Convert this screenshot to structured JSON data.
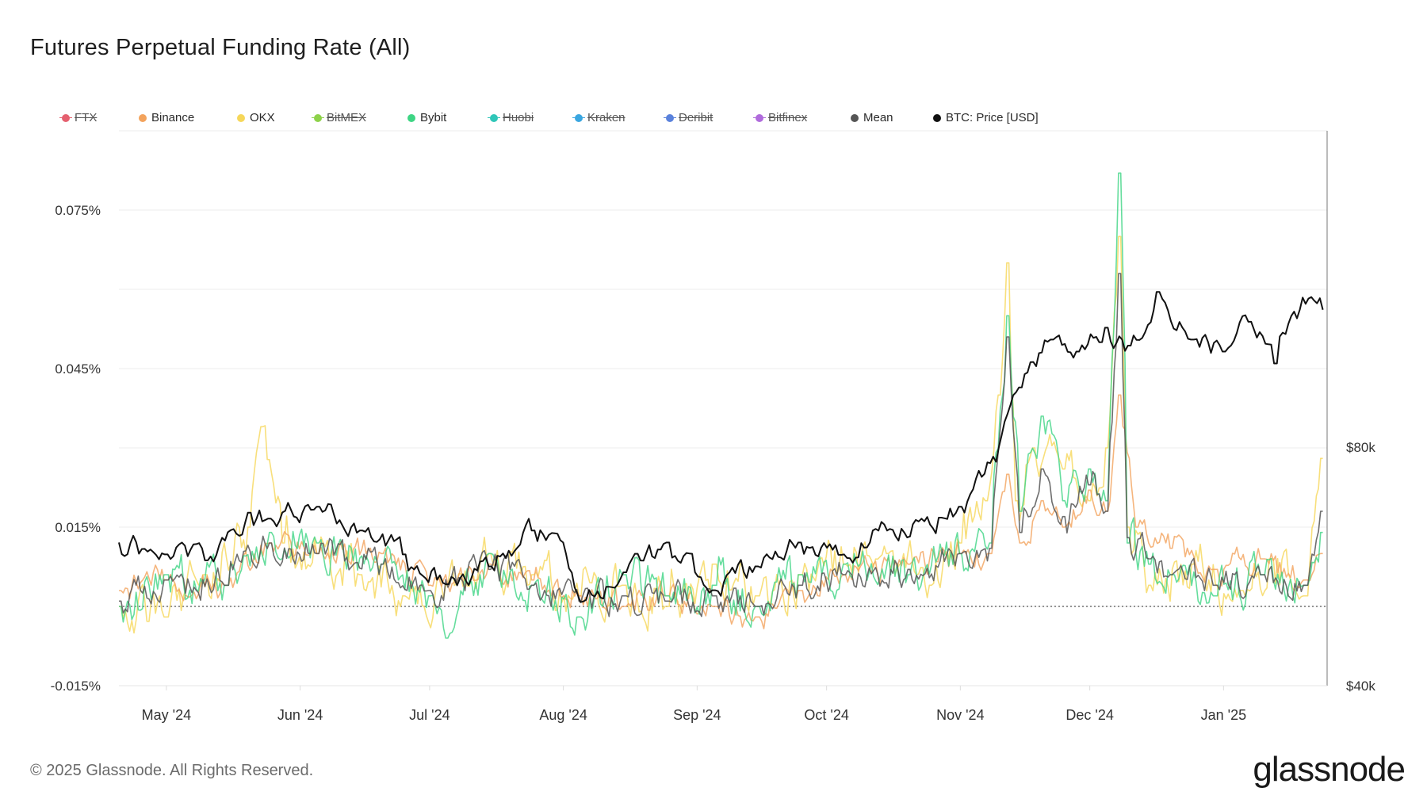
{
  "title": "Futures Perpetual Funding Rate (All)",
  "footer": "© 2025 Glassnode. All Rights Reserved.",
  "brand": "glassnode",
  "chart_data": {
    "type": "line",
    "x_ticks": [
      "May '24",
      "Jun '24",
      "Jul '24",
      "Aug '24",
      "Sep '24",
      "Oct '24",
      "Nov '24",
      "Dec '24",
      "Jan '25"
    ],
    "x_range": [
      "2024-04-20",
      "2025-01-25"
    ],
    "y_left": {
      "ticks": [
        -0.015,
        0.015,
        0.045,
        0.075
      ],
      "tick_labels": [
        "-0.015%",
        "0.015%",
        "0.045%",
        "0.075%"
      ],
      "range": [
        -0.015,
        0.09
      ]
    },
    "y_right": {
      "ticks": [
        40000,
        80000
      ],
      "tick_labels": [
        "$40k",
        "$80k"
      ],
      "range": [
        40000,
        133000
      ]
    },
    "grid": true,
    "legend_position": "top",
    "baseline": 0,
    "series": [
      {
        "name": "FTX",
        "color": "#e5606f",
        "enabled": false
      },
      {
        "name": "Binance",
        "color": "#f3a35c",
        "enabled": true,
        "axis": "left",
        "x": [
          "2024-04-20",
          "2024-05-01",
          "2024-05-15",
          "2024-05-25",
          "2024-06-05",
          "2024-06-20",
          "2024-07-01",
          "2024-07-15",
          "2024-07-25",
          "2024-08-05",
          "2024-08-15",
          "2024-08-25",
          "2024-09-05",
          "2024-09-15",
          "2024-09-25",
          "2024-10-05",
          "2024-10-20",
          "2024-11-01",
          "2024-11-08",
          "2024-11-12",
          "2024-11-15",
          "2024-11-20",
          "2024-11-25",
          "2024-12-01",
          "2024-12-05",
          "2024-12-08",
          "2024-12-12",
          "2024-12-20",
          "2024-12-30",
          "2025-01-10",
          "2025-01-20",
          "2025-01-24"
        ],
        "y": [
          0.003,
          0.005,
          0.004,
          0.012,
          0.01,
          0.01,
          0.004,
          0.008,
          0.005,
          0.002,
          0.0,
          0.002,
          0.0,
          -0.002,
          0.003,
          0.006,
          0.008,
          0.01,
          0.01,
          0.025,
          0.012,
          0.02,
          0.015,
          0.022,
          0.018,
          0.04,
          0.015,
          0.011,
          0.007,
          0.009,
          0.005,
          0.01
        ]
      },
      {
        "name": "OKX",
        "color": "#f6d75a",
        "enabled": true,
        "axis": "left",
        "x": [
          "2024-04-20",
          "2024-05-01",
          "2024-05-10",
          "2024-05-20",
          "2024-05-23",
          "2024-05-28",
          "2024-06-05",
          "2024-06-15",
          "2024-06-25",
          "2024-07-05",
          "2024-07-15",
          "2024-07-25",
          "2024-08-05",
          "2024-08-15",
          "2024-08-25",
          "2024-09-05",
          "2024-09-15",
          "2024-09-25",
          "2024-10-05",
          "2024-10-15",
          "2024-10-25",
          "2024-11-01",
          "2024-11-07",
          "2024-11-10",
          "2024-11-12",
          "2024-11-14",
          "2024-11-18",
          "2024-11-25",
          "2024-12-01",
          "2024-12-05",
          "2024-12-08",
          "2024-12-10",
          "2024-12-15",
          "2024-12-25",
          "2025-01-05",
          "2025-01-12",
          "2025-01-20",
          "2025-01-24"
        ],
        "y": [
          0.0,
          -0.002,
          0.006,
          0.015,
          0.034,
          0.012,
          0.01,
          0.006,
          0.002,
          0.004,
          0.01,
          0.006,
          0.002,
          0.004,
          0.0,
          0.008,
          0.002,
          0.006,
          0.008,
          0.01,
          0.004,
          0.012,
          0.02,
          0.04,
          0.065,
          0.02,
          0.03,
          0.026,
          0.02,
          0.03,
          0.07,
          0.015,
          0.004,
          0.008,
          0.003,
          0.009,
          0.002,
          0.028
        ]
      },
      {
        "name": "BitMEX",
        "color": "#8ed24a",
        "enabled": false
      },
      {
        "name": "Bybit",
        "color": "#3ed584",
        "enabled": true,
        "axis": "left",
        "x": [
          "2024-04-20",
          "2024-05-01",
          "2024-05-15",
          "2024-05-25",
          "2024-06-05",
          "2024-06-20",
          "2024-07-01",
          "2024-07-05",
          "2024-07-15",
          "2024-07-25",
          "2024-08-05",
          "2024-08-15",
          "2024-08-25",
          "2024-09-05",
          "2024-09-15",
          "2024-09-25",
          "2024-10-05",
          "2024-10-20",
          "2024-11-01",
          "2024-11-08",
          "2024-11-12",
          "2024-11-15",
          "2024-11-20",
          "2024-11-25",
          "2024-12-01",
          "2024-12-05",
          "2024-12-08",
          "2024-12-10",
          "2024-12-15",
          "2024-12-20",
          "2024-12-30",
          "2025-01-10",
          "2025-01-20",
          "2025-01-24"
        ],
        "y": [
          0.0,
          0.006,
          0.004,
          0.014,
          0.012,
          0.008,
          0.002,
          -0.006,
          0.01,
          0.004,
          -0.002,
          0.006,
          0.002,
          0.004,
          0.0,
          0.006,
          0.008,
          0.006,
          0.01,
          0.012,
          0.055,
          0.018,
          0.036,
          0.02,
          0.026,
          0.02,
          0.082,
          0.012,
          0.008,
          0.006,
          0.002,
          0.006,
          0.004,
          0.014
        ]
      },
      {
        "name": "Huobi",
        "color": "#2fc6b8",
        "enabled": false
      },
      {
        "name": "Kraken",
        "color": "#3aa6e0",
        "enabled": false
      },
      {
        "name": "Deribit",
        "color": "#5a82dc",
        "enabled": false
      },
      {
        "name": "Bitfinex",
        "color": "#b06bdc",
        "enabled": false
      },
      {
        "name": "Mean",
        "color": "#555555",
        "enabled": true,
        "axis": "left",
        "x": [
          "2024-04-20",
          "2024-05-01",
          "2024-05-15",
          "2024-05-25",
          "2024-06-05",
          "2024-06-20",
          "2024-07-01",
          "2024-07-15",
          "2024-07-25",
          "2024-08-05",
          "2024-08-15",
          "2024-08-25",
          "2024-09-05",
          "2024-09-15",
          "2024-09-25",
          "2024-10-05",
          "2024-10-20",
          "2024-11-01",
          "2024-11-08",
          "2024-11-12",
          "2024-11-15",
          "2024-11-20",
          "2024-11-25",
          "2024-12-01",
          "2024-12-05",
          "2024-12-08",
          "2024-12-10",
          "2024-12-15",
          "2024-12-20",
          "2024-12-30",
          "2025-01-10",
          "2025-01-20",
          "2025-01-24"
        ],
        "y": [
          0.001,
          0.005,
          0.004,
          0.012,
          0.01,
          0.008,
          0.003,
          0.007,
          0.004,
          0.001,
          0.002,
          0.001,
          0.002,
          0.0,
          0.004,
          0.006,
          0.007,
          0.01,
          0.011,
          0.051,
          0.014,
          0.026,
          0.017,
          0.023,
          0.018,
          0.063,
          0.013,
          0.009,
          0.006,
          0.004,
          0.006,
          0.004,
          0.018
        ]
      },
      {
        "name": "BTC: Price [USD]",
        "color": "#111111",
        "enabled": true,
        "axis": "right",
        "x": [
          "2024-04-20",
          "2024-05-01",
          "2024-05-10",
          "2024-05-20",
          "2024-05-25",
          "2024-06-05",
          "2024-06-15",
          "2024-06-25",
          "2024-07-05",
          "2024-07-15",
          "2024-07-25",
          "2024-08-01",
          "2024-08-05",
          "2024-08-15",
          "2024-08-25",
          "2024-09-05",
          "2024-09-15",
          "2024-09-25",
          "2024-10-05",
          "2024-10-15",
          "2024-10-25",
          "2024-11-01",
          "2024-11-06",
          "2024-11-10",
          "2024-11-15",
          "2024-11-22",
          "2024-11-28",
          "2024-12-05",
          "2024-12-10",
          "2024-12-17",
          "2024-12-25",
          "2025-01-01",
          "2025-01-07",
          "2025-01-13",
          "2025-01-20",
          "2025-01-24"
        ],
        "y": [
          64000,
          62000,
          61000,
          69000,
          68000,
          70000,
          66000,
          62000,
          57000,
          60000,
          66000,
          64000,
          54000,
          59000,
          64000,
          56000,
          60000,
          64000,
          62000,
          66000,
          67000,
          70000,
          75000,
          80000,
          90000,
          98000,
          96000,
          100000,
          97000,
          106000,
          98000,
          96000,
          101000,
          94000,
          104000,
          103000
        ]
      }
    ]
  }
}
